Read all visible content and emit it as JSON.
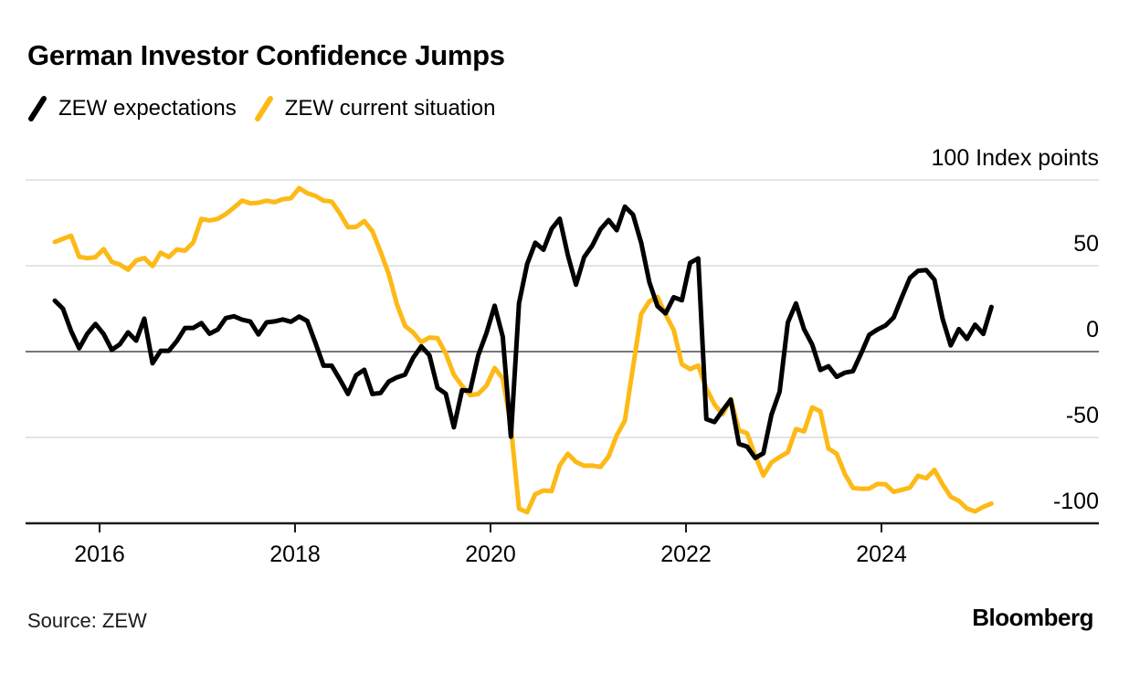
{
  "title": "German Investor Confidence Jumps",
  "legend": {
    "items": [
      {
        "label": "ZEW expectations",
        "color": "#000000"
      },
      {
        "label": "ZEW current situation",
        "color": "#FDB916"
      }
    ]
  },
  "footer": {
    "source": "Source: ZEW",
    "brand": "Bloomberg"
  },
  "chart_data": {
    "type": "line",
    "title": "German Investor Confidence Jumps",
    "frequency": "monthly",
    "start": {
      "year": 2015,
      "month": 7
    },
    "end": {
      "year": 2025,
      "month": 2
    },
    "ylim": [
      -100,
      100
    ],
    "grid": true,
    "legend_position": "top-left",
    "colors": {
      "gridline": "#dcdcdc",
      "zero_line": "#4a4a4a",
      "axis": "#1a1a1a",
      "tick": "#1a1a1a"
    },
    "y_axis": [
      {
        "value": 100,
        "label": "100 Index points"
      },
      {
        "value": 50,
        "label": "50"
      },
      {
        "value": 0,
        "label": "0"
      },
      {
        "value": -50,
        "label": "-50"
      },
      {
        "value": -100,
        "label": "-100"
      }
    ],
    "x_tick_years": [
      2016,
      2018,
      2020,
      2022,
      2024
    ],
    "series": [
      {
        "name": "ZEW expectations",
        "color": "#000000",
        "values": [
          29.7,
          25.0,
          12.1,
          1.9,
          10.4,
          16.1,
          10.2,
          1.0,
          4.3,
          11.2,
          6.4,
          19.2,
          -6.8,
          0.5,
          0.5,
          6.2,
          13.8,
          13.8,
          16.6,
          10.4,
          12.8,
          19.5,
          20.6,
          18.6,
          17.5,
          10.0,
          17.0,
          17.6,
          18.7,
          17.4,
          20.4,
          17.8,
          5.1,
          -8.2,
          -8.2,
          -16.1,
          -24.7,
          -13.7,
          -10.6,
          -24.7,
          -24.1,
          -17.5,
          -15.0,
          -13.4,
          -3.6,
          3.1,
          -2.1,
          -21.1,
          -24.5,
          -44.1,
          -22.5,
          -22.8,
          -2.1,
          10.7,
          26.7,
          8.7,
          -49.5,
          28.2,
          51.0,
          63.4,
          59.3,
          71.5,
          77.4,
          56.1,
          39.0,
          55.0,
          61.8,
          71.2,
          76.6,
          70.7,
          84.4,
          79.8,
          63.3,
          40.4,
          26.5,
          22.3,
          31.7,
          29.9,
          51.7,
          54.3,
          -39.3,
          -41.0,
          -34.3,
          -28.0,
          -53.8,
          -55.3,
          -61.9,
          -59.2,
          -36.7,
          -23.3,
          16.9,
          28.1,
          13.0,
          4.1,
          -10.7,
          -8.5,
          -14.7,
          -12.3,
          -11.4,
          -1.1,
          9.8,
          12.8,
          15.2,
          19.9,
          31.7,
          42.9,
          47.1,
          47.5,
          41.8,
          19.2,
          3.6,
          13.1,
          7.4,
          15.7,
          10.3,
          26.0
        ]
      },
      {
        "name": "ZEW current situation",
        "color": "#FDB916",
        "values": [
          63.9,
          65.7,
          67.5,
          55.2,
          54.4,
          55.0,
          59.7,
          52.3,
          50.7,
          47.7,
          53.1,
          54.5,
          49.8,
          57.6,
          55.1,
          59.5,
          58.8,
          63.5,
          77.3,
          76.4,
          77.3,
          80.1,
          83.9,
          88.0,
          86.4,
          86.7,
          87.9,
          87.0,
          88.8,
          89.3,
          95.2,
          92.3,
          90.7,
          87.9,
          87.4,
          80.6,
          72.4,
          72.6,
          76.0,
          70.1,
          58.2,
          45.3,
          27.6,
          15.0,
          11.1,
          5.5,
          8.2,
          7.8,
          -1.1,
          -13.5,
          -19.9,
          -25.3,
          -24.7,
          -19.9,
          -9.5,
          -15.7,
          -43.1,
          -91.5,
          -93.5,
          -83.1,
          -80.9,
          -81.3,
          -66.2,
          -59.5,
          -64.3,
          -66.5,
          -66.4,
          -67.2,
          -61.0,
          -48.8,
          -40.1,
          -9.1,
          21.9,
          29.3,
          31.9,
          21.6,
          12.5,
          -7.4,
          -10.2,
          -8.1,
          -21.4,
          -30.8,
          -36.5,
          -27.6,
          -45.8,
          -47.6,
          -60.5,
          -72.2,
          -64.5,
          -61.4,
          -58.6,
          -45.1,
          -46.5,
          -32.5,
          -34.8,
          -56.5,
          -59.5,
          -71.3,
          -79.4,
          -79.9,
          -79.8,
          -77.1,
          -77.3,
          -81.7,
          -80.5,
          -79.2,
          -72.3,
          -73.8,
          -68.9,
          -77.3,
          -84.5,
          -86.9,
          -91.4,
          -93.1,
          -90.4,
          -88.5
        ]
      }
    ]
  }
}
